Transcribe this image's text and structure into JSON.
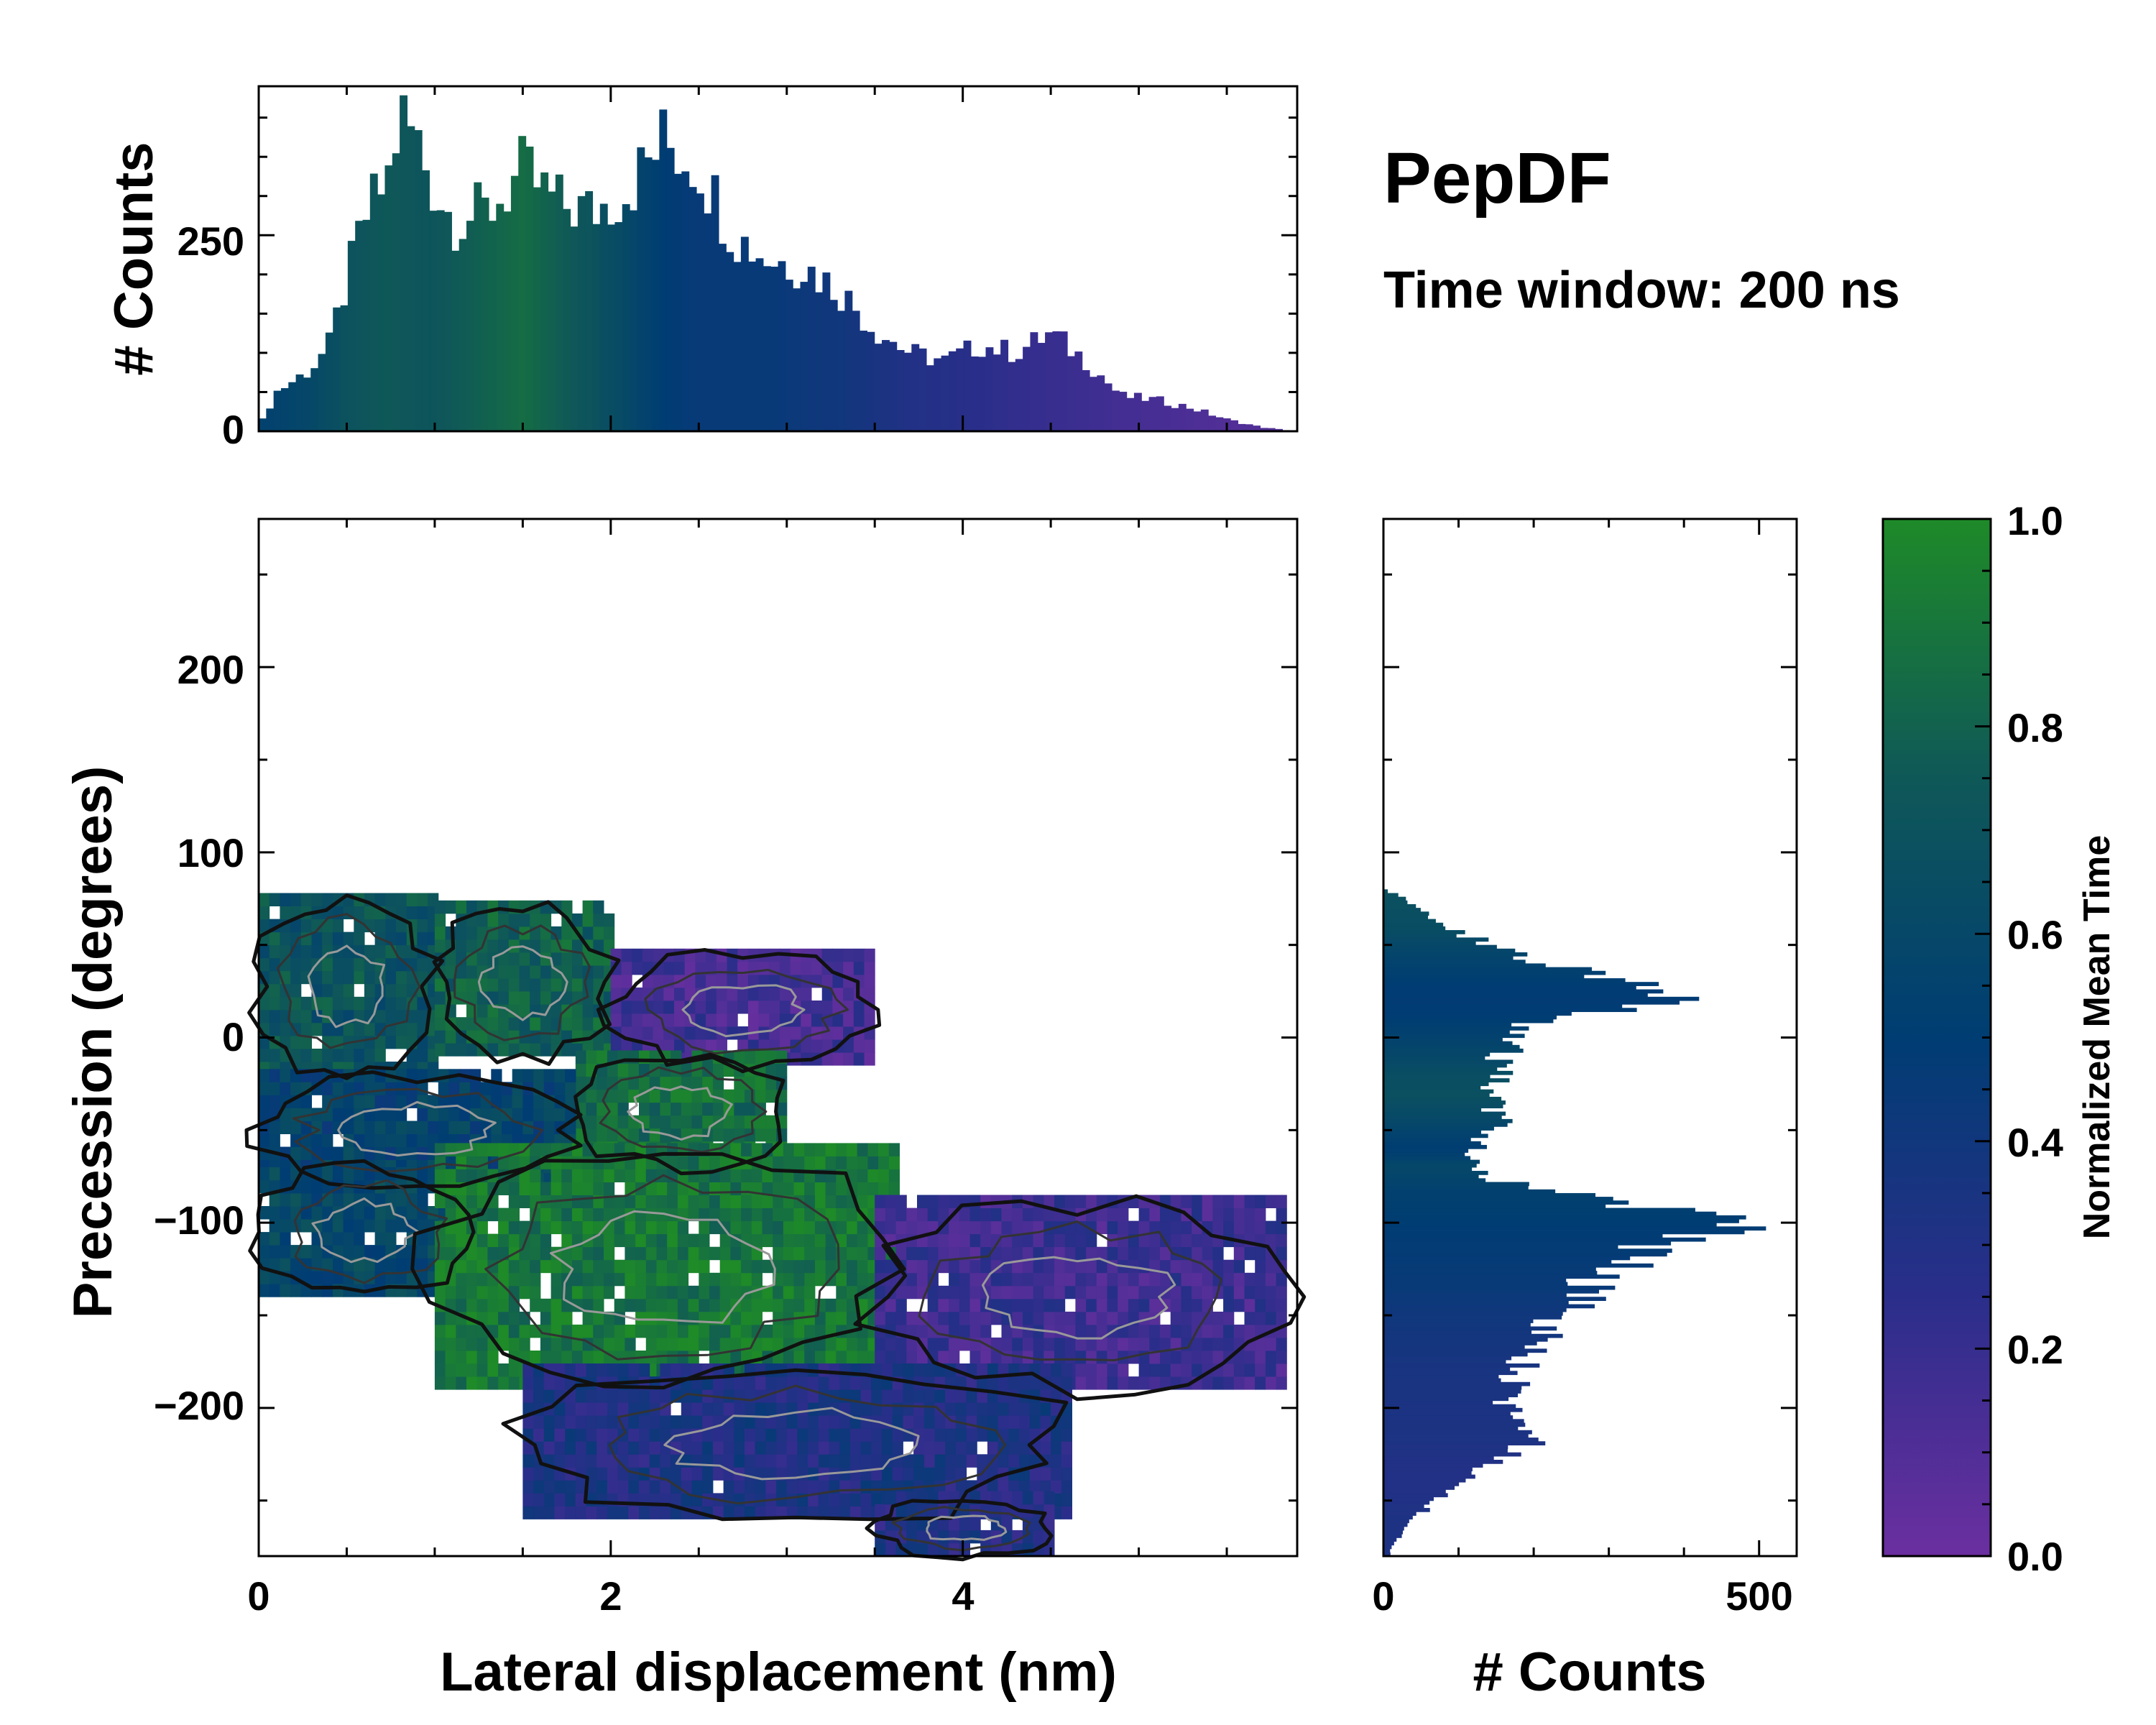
{
  "title": "PepDF",
  "subtitle": "Time window: 200 ns",
  "chart_data": [
    {
      "name": "top-histogram",
      "type": "bar",
      "ylabel": "# Counts",
      "xlim": [
        0,
        5.9
      ],
      "ylim": [
        0,
        440
      ],
      "yticks": [
        0,
        250
      ],
      "ytick_labels": [
        "0",
        "250"
      ],
      "color_by": "normalized mean time",
      "profile": [
        [
          0.0,
          5,
          0.55
        ],
        [
          0.1,
          50,
          0.55
        ],
        [
          0.3,
          80,
          0.6
        ],
        [
          0.4,
          110,
          0.65
        ],
        [
          0.5,
          190,
          0.7
        ],
        [
          0.6,
          270,
          0.72
        ],
        [
          0.75,
          330,
          0.75
        ],
        [
          0.8,
          405,
          0.74
        ],
        [
          0.9,
          370,
          0.72
        ],
        [
          1.0,
          310,
          0.72
        ],
        [
          1.1,
          270,
          0.75
        ],
        [
          1.3,
          280,
          0.8
        ],
        [
          1.5,
          330,
          0.85
        ],
        [
          1.7,
          290,
          0.78
        ],
        [
          1.9,
          280,
          0.7
        ],
        [
          2.1,
          310,
          0.6
        ],
        [
          2.3,
          370,
          0.5
        ],
        [
          2.5,
          340,
          0.45
        ],
        [
          2.7,
          250,
          0.45
        ],
        [
          2.9,
          220,
          0.45
        ],
        [
          3.1,
          210,
          0.42
        ],
        [
          3.3,
          180,
          0.4
        ],
        [
          3.5,
          130,
          0.35
        ],
        [
          3.7,
          100,
          0.3
        ],
        [
          3.9,
          90,
          0.28
        ],
        [
          4.1,
          110,
          0.25
        ],
        [
          4.3,
          100,
          0.22
        ],
        [
          4.5,
          125,
          0.2
        ],
        [
          4.7,
          90,
          0.18
        ],
        [
          4.9,
          45,
          0.15
        ],
        [
          5.1,
          40,
          0.14
        ],
        [
          5.3,
          30,
          0.12
        ],
        [
          5.5,
          15,
          0.1
        ],
        [
          5.7,
          5,
          0.1
        ],
        [
          5.9,
          0,
          0.1
        ]
      ]
    },
    {
      "name": "main-heatmap",
      "type": "heatmap",
      "xlabel": "Lateral displacement (nm)",
      "ylabel": "Precession (degrees)",
      "xlim": [
        0,
        5.9
      ],
      "ylim": [
        -280,
        280
      ],
      "xticks": [
        0,
        2,
        4
      ],
      "xtick_labels": [
        "0",
        "2",
        "4"
      ],
      "yticks": [
        -200,
        -100,
        0,
        100,
        200
      ],
      "ytick_labels": [
        "−200",
        "−100",
        "0",
        "100",
        "200"
      ],
      "color_by": "normalized mean time",
      "regions": [
        {
          "x": [
            0.0,
            1.0
          ],
          "y": [
            -20,
            75
          ],
          "t": 0.7
        },
        {
          "x": [
            1.0,
            2.0
          ],
          "y": [
            -10,
            70
          ],
          "t": 0.78
        },
        {
          "x": [
            2.0,
            3.5
          ],
          "y": [
            -15,
            45
          ],
          "t": 0.15
        },
        {
          "x": [
            1.8,
            3.0
          ],
          "y": [
            -70,
            -10
          ],
          "t": 0.85
        },
        {
          "x": [
            0.0,
            1.8
          ],
          "y": [
            -80,
            -20
          ],
          "t": 0.55
        },
        {
          "x": [
            0.0,
            1.2
          ],
          "y": [
            -140,
            -70
          ],
          "t": 0.6
        },
        {
          "x": [
            1.0,
            3.6
          ],
          "y": [
            -190,
            -60
          ],
          "t": 0.9
        },
        {
          "x": [
            3.5,
            5.8
          ],
          "y": [
            -190,
            -90
          ],
          "t": 0.18
        },
        {
          "x": [
            1.5,
            4.6
          ],
          "y": [
            -260,
            -180
          ],
          "t": 0.32
        },
        {
          "x": [
            3.5,
            4.5
          ],
          "y": [
            -280,
            -250
          ],
          "t": 0.3
        }
      ]
    },
    {
      "name": "right-histogram",
      "type": "bar",
      "orientation": "horizontal",
      "xlabel": "# Counts",
      "xlim": [
        0,
        550
      ],
      "ylim": [
        -280,
        280
      ],
      "xticks": [
        0,
        500
      ],
      "xtick_labels": [
        "0",
        "500"
      ],
      "color_by": "normalized mean time",
      "profile": [
        [
          80,
          0,
          0.7
        ],
        [
          75,
          30,
          0.68
        ],
        [
          60,
          80,
          0.65
        ],
        [
          50,
          140,
          0.6
        ],
        [
          40,
          210,
          0.55
        ],
        [
          30,
          320,
          0.5
        ],
        [
          20,
          420,
          0.48
        ],
        [
          10,
          200,
          0.5
        ],
        [
          0,
          180,
          0.55
        ],
        [
          -10,
          160,
          0.6
        ],
        [
          -20,
          150,
          0.65
        ],
        [
          -30,
          140,
          0.68
        ],
        [
          -45,
          160,
          0.6
        ],
        [
          -60,
          120,
          0.5
        ],
        [
          -70,
          110,
          0.6
        ],
        [
          -80,
          180,
          0.55
        ],
        [
          -90,
          320,
          0.52
        ],
        [
          -100,
          500,
          0.5
        ],
        [
          -110,
          380,
          0.48
        ],
        [
          -120,
          330,
          0.47
        ],
        [
          -135,
          270,
          0.45
        ],
        [
          -150,
          240,
          0.4
        ],
        [
          -165,
          200,
          0.38
        ],
        [
          -180,
          180,
          0.35
        ],
        [
          -200,
          160,
          0.34
        ],
        [
          -215,
          220,
          0.33
        ],
        [
          -230,
          150,
          0.3
        ],
        [
          -245,
          90,
          0.3
        ],
        [
          -260,
          40,
          0.32
        ],
        [
          -275,
          10,
          0.32
        ]
      ]
    },
    {
      "name": "colorbar",
      "type": "colorbar",
      "label": "Normalized Mean Time",
      "range": [
        0.0,
        1.0
      ],
      "ticks": [
        0.0,
        0.2,
        0.4,
        0.6,
        0.8,
        1.0
      ],
      "tick_labels": [
        "0.0",
        "0.2",
        "0.4",
        "0.6",
        "0.8",
        "1.0"
      ],
      "colormap": [
        "#6b2fa0",
        "#2a2e8a",
        "#003d73",
        "#0f5858",
        "#1e8a28"
      ]
    }
  ]
}
